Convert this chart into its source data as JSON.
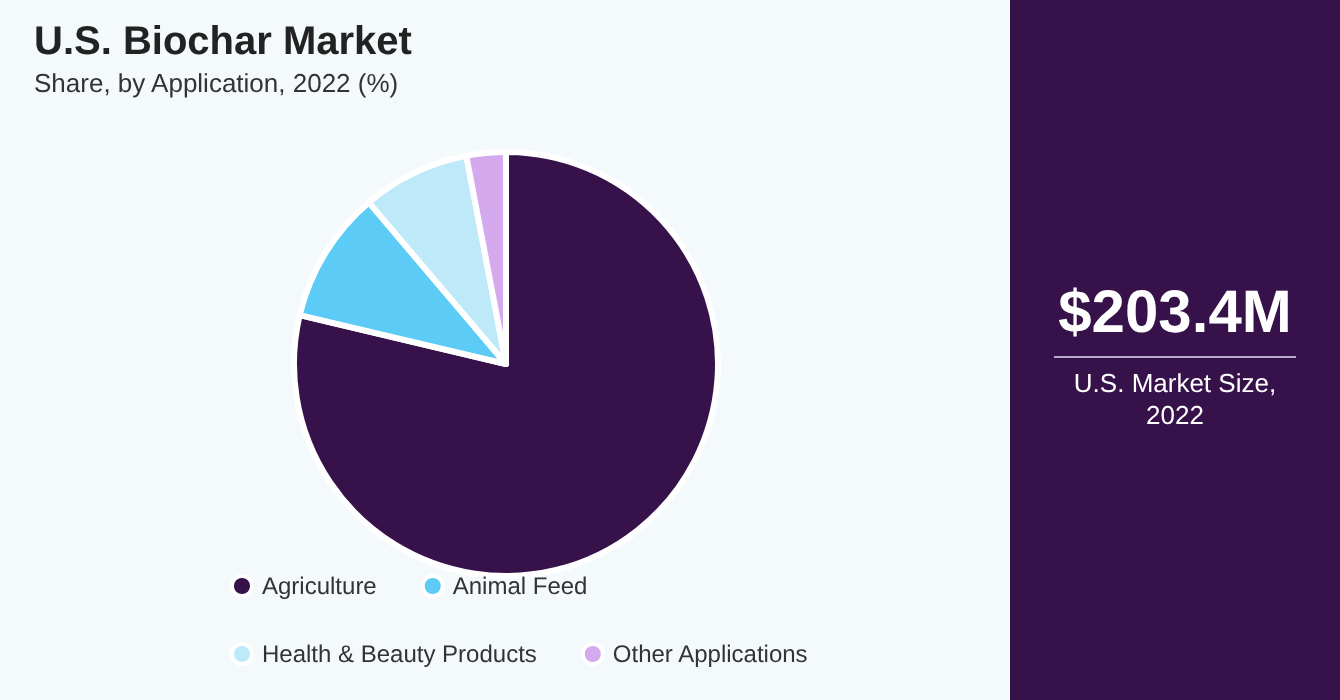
{
  "chart_data": {
    "type": "pie",
    "title": "U.S. Biochar Market",
    "subtitle": "Share, by Application, 2022 (%)",
    "categories": [
      "Agriculture",
      "Animal Feed",
      "Health & Beauty Products",
      "Other Applications"
    ],
    "values": [
      78.7,
      10.1,
      8.2,
      3.0
    ],
    "colors": [
      "#36114a",
      "#5ccbf5",
      "#bde9f9",
      "#d5a9ee"
    ],
    "legend": "bottom",
    "annotations": [
      "$203.4M",
      "U.S. Market Size, 2022"
    ]
  }
}
